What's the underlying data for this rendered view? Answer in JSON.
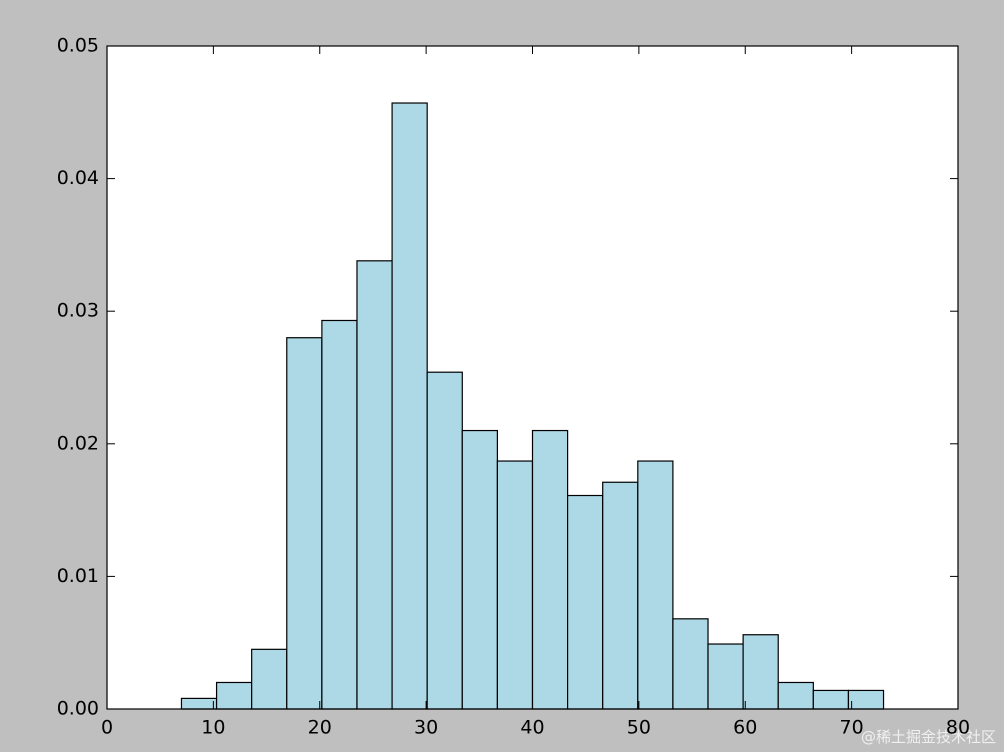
{
  "chart_data": {
    "type": "histogram",
    "bins": [
      7.0,
      10.3,
      13.6,
      16.9,
      20.2,
      23.5,
      26.8,
      30.1,
      33.4,
      36.7,
      40.0,
      43.3,
      46.6,
      49.9,
      53.2,
      56.5,
      59.8,
      63.1,
      66.4,
      69.7,
      73.0
    ],
    "counts": [
      0.0008,
      0.002,
      0.0045,
      0.028,
      0.0293,
      0.0338,
      0.0457,
      0.0254,
      0.021,
      0.0187,
      0.021,
      0.0161,
      0.0171,
      0.0187,
      0.0068,
      0.0049,
      0.0056,
      0.002,
      0.0014,
      0.0014
    ],
    "color": "#add8e6",
    "xlim": [
      0,
      80
    ],
    "xticks": [
      0,
      10,
      20,
      30,
      40,
      50,
      60,
      70,
      80
    ],
    "ylim": [
      0,
      0.05
    ],
    "yticks": [
      {
        "value": 0,
        "label": "0.00"
      },
      {
        "value": 0.01,
        "label": "0.01"
      },
      {
        "value": 0.02,
        "label": "0.02"
      },
      {
        "value": 0.03,
        "label": "0.03"
      },
      {
        "value": 0.04,
        "label": "0.04"
      },
      {
        "value": 0.05,
        "label": "0.05"
      }
    ],
    "watermark": "@稀土掘金技术社区"
  }
}
